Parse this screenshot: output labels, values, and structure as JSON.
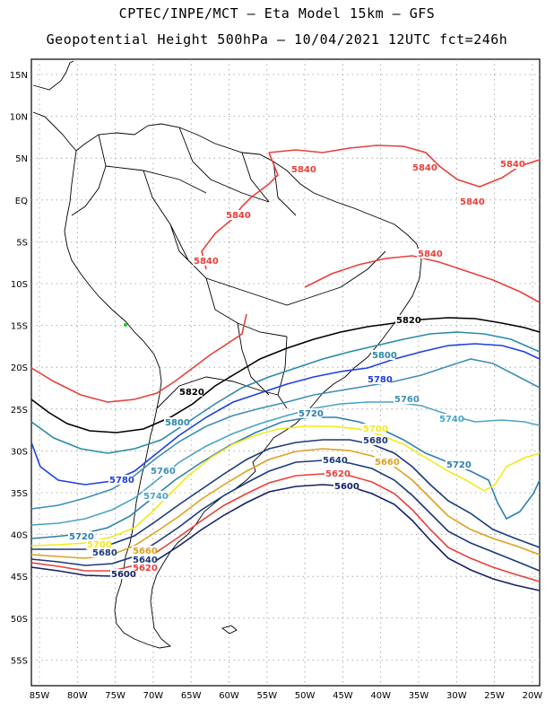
{
  "title_line1": "CPTEC/INPE/MCT –  Eta Model 15km – GFS",
  "title_line2": "Geopotential Height 500hPa – 10/04/2021 12UTC fct=246h",
  "lat_labels": [
    "15N",
    "10N",
    "5N",
    "EQ",
    "5S",
    "10S",
    "15S",
    "20S",
    "25S",
    "30S",
    "35S",
    "40S",
    "45S",
    "50S",
    "55S"
  ],
  "lon_labels": [
    "85W",
    "80W",
    "75W",
    "70W",
    "65W",
    "60W",
    "55W",
    "50W",
    "45W",
    "40W",
    "35W",
    "30W",
    "25W",
    "20W"
  ],
  "grid": true,
  "contours": [
    {
      "level": "5840",
      "color": "#e8403a",
      "labels": [
        "5840",
        "5840",
        "5840",
        "5840",
        "5840",
        "5840",
        "5840"
      ]
    },
    {
      "level": "5820",
      "color": "#000000",
      "labels": [
        "5820",
        "5820"
      ]
    },
    {
      "level": "5800",
      "color": "#2a8aa8",
      "labels": [
        "5800",
        "5800"
      ]
    },
    {
      "level": "5780",
      "color": "#1f3fe0",
      "labels": [
        "5780",
        "5780"
      ]
    },
    {
      "level": "5760",
      "color": "#3d8fb5",
      "labels": [
        "5760",
        "5760"
      ]
    },
    {
      "level": "5740",
      "color": "#4aa4c6",
      "labels": [
        "5740",
        "5740"
      ]
    },
    {
      "level": "5720",
      "color": "#2d7fb0",
      "labels": [
        "5720",
        "5720",
        "5720"
      ]
    },
    {
      "level": "5700",
      "color": "#f2ea1a",
      "labels": [
        "5700",
        "5700"
      ]
    },
    {
      "level": "5680",
      "color": "#1a3a7a",
      "labels": [
        "5680",
        "5680"
      ]
    },
    {
      "level": "5660",
      "color": "#e0a020",
      "labels": [
        "5660",
        "5660"
      ]
    },
    {
      "level": "5640",
      "color": "#1a3a7a",
      "labels": [
        "5640",
        "5640"
      ]
    },
    {
      "level": "5620",
      "color": "#e8403a",
      "labels": [
        "5620",
        "5620"
      ]
    },
    {
      "level": "5600",
      "color": "#14206a",
      "labels": [
        "5600",
        "5600"
      ]
    }
  ]
}
